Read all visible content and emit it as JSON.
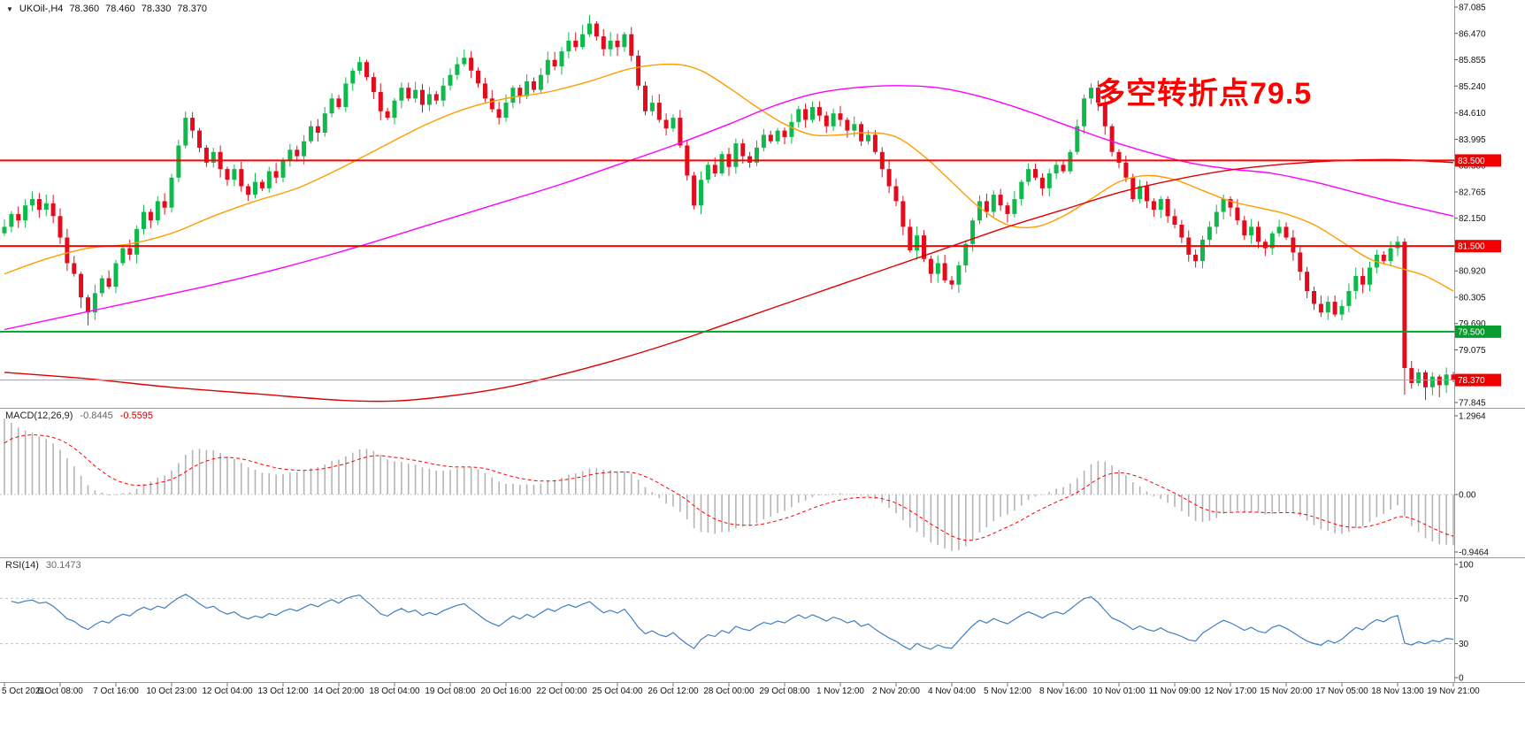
{
  "header": {
    "dropdown_icon": "▼",
    "symbol": "UKOil-,H4",
    "open": "78.360",
    "high": "78.460",
    "low": "78.330",
    "close": "78.370"
  },
  "annotation": {
    "text": "多空转折点79.5",
    "color": "#ff0000"
  },
  "colors": {
    "bull": "#10b94b",
    "bear": "#e30b1c",
    "ma_fast": "#ff9d00",
    "ma_mid": "#ff00ff",
    "ma_slow": "#e00000",
    "price_line": "#8fa8b8",
    "macd_hist": "#b4b4b4",
    "macd_signal": "#ff0000",
    "rsi_line": "#3e7fc1",
    "axis_text": "#111111",
    "separator": "#9a9a9a"
  },
  "chart_data": {
    "type": "candlestick",
    "symbol": "UKOil-",
    "timeframe": "H4",
    "first_open": 81.8,
    "closes": [
      81.95,
      82.25,
      82.1,
      82.45,
      82.6,
      82.35,
      82.5,
      82.2,
      81.7,
      81.1,
      80.85,
      80.3,
      79.95,
      80.4,
      80.75,
      80.55,
      81.1,
      81.45,
      81.3,
      81.9,
      82.3,
      82.1,
      82.55,
      82.4,
      83.1,
      83.85,
      84.5,
      84.2,
      83.8,
      83.45,
      83.7,
      83.3,
      83.05,
      83.3,
      82.9,
      82.7,
      83.0,
      82.85,
      83.25,
      83.1,
      83.5,
      83.75,
      83.6,
      83.95,
      84.3,
      84.15,
      84.6,
      84.95,
      84.75,
      85.3,
      85.6,
      85.8,
      85.45,
      85.1,
      84.65,
      84.5,
      84.9,
      85.2,
      84.95,
      85.15,
      84.8,
      85.05,
      84.9,
      85.25,
      85.5,
      85.75,
      85.9,
      85.6,
      85.3,
      84.95,
      84.7,
      84.5,
      84.85,
      85.2,
      85.0,
      85.35,
      85.15,
      85.5,
      85.85,
      85.7,
      86.05,
      86.3,
      86.15,
      86.45,
      86.7,
      86.4,
      86.1,
      86.3,
      86.15,
      86.45,
      85.95,
      85.25,
      84.65,
      84.85,
      84.45,
      84.25,
      84.5,
      83.85,
      83.15,
      82.45,
      83.05,
      83.4,
      83.2,
      83.65,
      83.35,
      83.9,
      83.6,
      83.45,
      83.8,
      84.1,
      83.95,
      84.2,
      84.05,
      84.4,
      84.7,
      84.45,
      84.75,
      84.55,
      84.3,
      84.6,
      84.45,
      84.2,
      84.35,
      83.95,
      84.1,
      83.7,
      83.3,
      82.9,
      82.55,
      81.95,
      81.4,
      81.75,
      81.2,
      80.85,
      81.1,
      80.7,
      80.6,
      81.05,
      81.55,
      82.1,
      82.55,
      82.3,
      82.7,
      82.45,
      82.25,
      82.6,
      83.0,
      83.3,
      83.1,
      82.85,
      83.2,
      83.4,
      83.25,
      83.7,
      84.3,
      84.95,
      85.2,
      84.85,
      84.3,
      83.7,
      83.45,
      83.1,
      82.6,
      82.9,
      82.55,
      82.35,
      82.6,
      82.2,
      82.0,
      81.7,
      81.3,
      81.15,
      81.65,
      81.95,
      82.3,
      82.6,
      82.4,
      82.1,
      81.75,
      81.95,
      81.6,
      81.45,
      81.8,
      81.95,
      81.7,
      81.35,
      80.9,
      80.45,
      80.15,
      79.95,
      80.2,
      79.9,
      80.1,
      80.45,
      80.8,
      80.6,
      81.0,
      81.3,
      81.15,
      81.45,
      81.6,
      78.65,
      78.3,
      78.55,
      78.2,
      78.45,
      78.25,
      78.5,
      78.37
    ],
    "wick_overrides": {
      "11": [
        0.05,
        0.25
      ],
      "12": [
        0.06,
        0.3
      ],
      "83": [
        0.22,
        0.05
      ],
      "84": [
        0.2,
        0.06
      ],
      "201": [
        0.08,
        0.62
      ],
      "204": [
        0.05,
        0.3
      ],
      "206": [
        0.05,
        0.28
      ],
      "208": [
        0.06,
        0.05
      ]
    },
    "moving_averages": [
      {
        "name": "ma-fast-orange",
        "color": "#ff9d00",
        "points": [
          [
            0,
            80.85
          ],
          [
            6,
            81.2
          ],
          [
            12,
            81.45
          ],
          [
            18,
            81.55
          ],
          [
            24,
            81.8
          ],
          [
            30,
            82.2
          ],
          [
            36,
            82.55
          ],
          [
            42,
            82.85
          ],
          [
            48,
            83.3
          ],
          [
            54,
            83.8
          ],
          [
            60,
            84.3
          ],
          [
            66,
            84.7
          ],
          [
            72,
            84.95
          ],
          [
            78,
            85.1
          ],
          [
            84,
            85.35
          ],
          [
            90,
            85.65
          ],
          [
            96,
            85.75
          ],
          [
            100,
            85.6
          ],
          [
            104,
            85.2
          ],
          [
            108,
            84.75
          ],
          [
            112,
            84.35
          ],
          [
            116,
            84.1
          ],
          [
            120,
            84.1
          ],
          [
            124,
            84.15
          ],
          [
            128,
            84.05
          ],
          [
            132,
            83.6
          ],
          [
            136,
            83.0
          ],
          [
            140,
            82.4
          ],
          [
            144,
            82.0
          ],
          [
            148,
            81.95
          ],
          [
            152,
            82.2
          ],
          [
            156,
            82.6
          ],
          [
            160,
            83.0
          ],
          [
            164,
            83.15
          ],
          [
            168,
            83.05
          ],
          [
            172,
            82.8
          ],
          [
            176,
            82.55
          ],
          [
            180,
            82.4
          ],
          [
            184,
            82.25
          ],
          [
            188,
            82.0
          ],
          [
            192,
            81.6
          ],
          [
            196,
            81.2
          ],
          [
            200,
            81.0
          ],
          [
            204,
            80.8
          ],
          [
            208,
            80.45
          ]
        ]
      },
      {
        "name": "ma-mid-magenta",
        "color": "#ff00ff",
        "points": [
          [
            0,
            79.55
          ],
          [
            10,
            79.9
          ],
          [
            20,
            80.25
          ],
          [
            30,
            80.6
          ],
          [
            40,
            81.0
          ],
          [
            50,
            81.45
          ],
          [
            60,
            81.95
          ],
          [
            70,
            82.45
          ],
          [
            80,
            82.95
          ],
          [
            88,
            83.4
          ],
          [
            96,
            83.85
          ],
          [
            104,
            84.35
          ],
          [
            110,
            84.75
          ],
          [
            116,
            85.05
          ],
          [
            122,
            85.2
          ],
          [
            128,
            85.25
          ],
          [
            134,
            85.2
          ],
          [
            140,
            85.0
          ],
          [
            146,
            84.7
          ],
          [
            152,
            84.35
          ],
          [
            158,
            84.0
          ],
          [
            164,
            83.7
          ],
          [
            170,
            83.45
          ],
          [
            176,
            83.3
          ],
          [
            182,
            83.2
          ],
          [
            188,
            83.0
          ],
          [
            194,
            82.75
          ],
          [
            200,
            82.5
          ],
          [
            204,
            82.35
          ],
          [
            208,
            82.2
          ]
        ]
      },
      {
        "name": "ma-slow-red",
        "color": "#e00000",
        "points": [
          [
            0,
            78.55
          ],
          [
            12,
            78.4
          ],
          [
            24,
            78.2
          ],
          [
            36,
            78.05
          ],
          [
            48,
            77.9
          ],
          [
            56,
            77.88
          ],
          [
            64,
            78.0
          ],
          [
            72,
            78.2
          ],
          [
            80,
            78.5
          ],
          [
            88,
            78.85
          ],
          [
            96,
            79.25
          ],
          [
            104,
            79.7
          ],
          [
            112,
            80.15
          ],
          [
            120,
            80.6
          ],
          [
            128,
            81.05
          ],
          [
            136,
            81.5
          ],
          [
            144,
            81.95
          ],
          [
            152,
            82.35
          ],
          [
            160,
            82.75
          ],
          [
            168,
            83.05
          ],
          [
            176,
            83.28
          ],
          [
            184,
            83.42
          ],
          [
            192,
            83.5
          ],
          [
            200,
            83.52
          ],
          [
            208,
            83.45
          ]
        ]
      }
    ],
    "hlines": [
      {
        "value": 83.5,
        "label": "83.500",
        "line_color": "#ff0000",
        "badge_color": "#f20000",
        "width": 2
      },
      {
        "value": 81.5,
        "label": "81.500",
        "line_color": "#ff0000",
        "badge_color": "#f20000",
        "width": 2
      },
      {
        "value": 79.5,
        "label": "79.500",
        "line_color": "#00a32e",
        "badge_color": "#089b2d",
        "width": 2
      },
      {
        "value": 78.37,
        "label": "78.370",
        "line_color": "#8fa8b8",
        "badge_color": "#f20000",
        "width": 1
      }
    ],
    "price_axis": {
      "labels": [
        "87.085",
        "86.470",
        "85.855",
        "85.240",
        "84.610",
        "83.995",
        "83.380",
        "82.765",
        "82.150",
        "80.920",
        "80.305",
        "79.690",
        "79.075",
        "77.845"
      ]
    },
    "time_axis": {
      "labels": [
        "5 Oct 2021",
        "6 Oct 08:00",
        "7 Oct 16:00",
        "10 Oct 23:00",
        "12 Oct 04:00",
        "13 Oct 12:00",
        "14 Oct 20:00",
        "18 Oct 04:00",
        "19 Oct 08:00",
        "20 Oct 16:00",
        "22 Oct 00:00",
        "25 Oct 04:00",
        "26 Oct 12:00",
        "28 Oct 00:00",
        "29 Oct 08:00",
        "1 Nov 12:00",
        "2 Nov 20:00",
        "4 Nov 04:00",
        "5 Nov 12:00",
        "8 Nov 16:00",
        "10 Nov 01:00",
        "11 Nov 09:00",
        "12 Nov 17:00",
        "15 Nov 20:00",
        "17 Nov 05:00",
        "18 Nov 13:00",
        "19 Nov 21:00"
      ]
    },
    "macd": {
      "title": "MACD(12,26,9)",
      "main_value": "-0.8445",
      "signal_value": "-0.5595",
      "fast": 12,
      "slow": 26,
      "signal_period": 9,
      "axis": [
        "1.2964",
        "0.00",
        "-0.9464"
      ]
    },
    "rsi": {
      "title": "RSI(14)",
      "value": "30.1473",
      "period": 14,
      "levels": [
        70,
        30
      ],
      "axis": [
        "100",
        "70",
        "30",
        "0"
      ]
    }
  }
}
